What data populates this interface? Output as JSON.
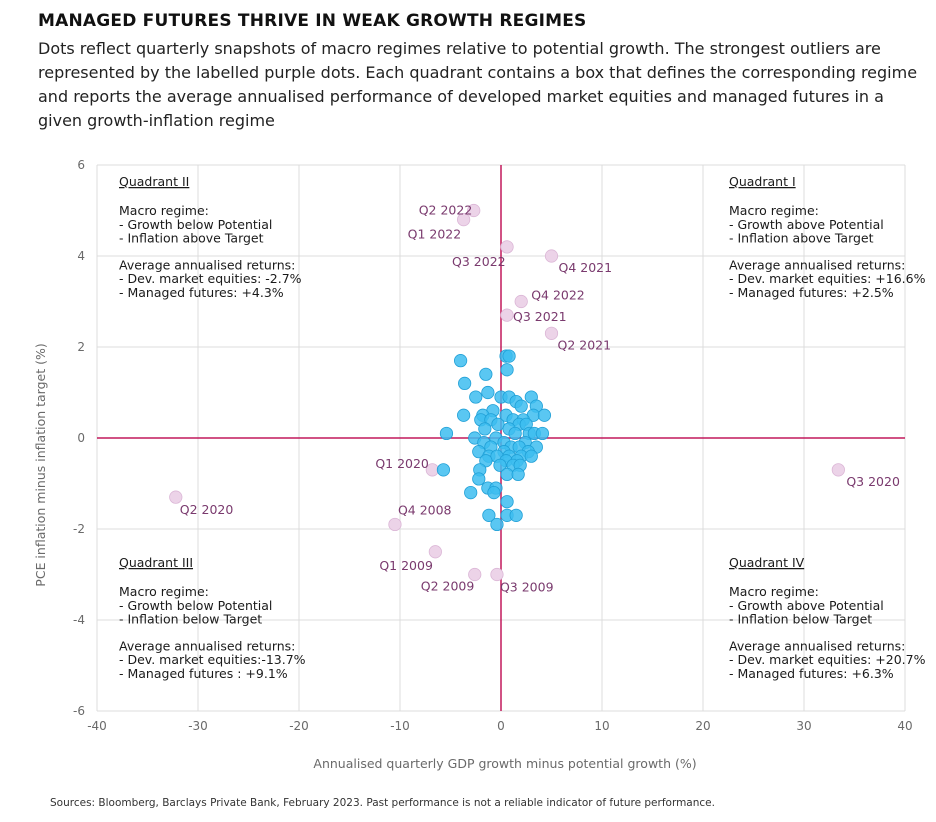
{
  "header": {
    "title": "MANAGED FUTURES THRIVE IN WEAK GROWTH REGIMES",
    "subtitle": "Dots reflect quarterly snapshots of macro regimes relative to potential growth. The strongest outliers are represented by the labelled purple dots. Each quadrant contains a box that defines the corresponding regime and reports the average annualised performance of developed market equities and managed futures in a given growth-inflation regime"
  },
  "footer": {
    "source": "Sources: Bloomberg, Barclays Private Bank, February 2023. Past performance is not a reliable indicator of future performance."
  },
  "colors": {
    "regular_dot": "#3dbdf0",
    "regular_dot_stroke": "#1f9fd6",
    "outlier_dot": "#ecd3e8",
    "outlier_label": "#7a3a6e",
    "zero_lines": "#c2185b",
    "grid": "#dcdcdc"
  },
  "chart_data": {
    "type": "scatter",
    "xlabel": "Annualised quarterly GDP growth minus potential growth (%)",
    "ylabel": "PCE inflation minus inflation target (%)",
    "xlim": [
      -40,
      40
    ],
    "ylim": [
      -6,
      6
    ],
    "xticks": [
      -40,
      -30,
      -20,
      -10,
      0,
      10,
      20,
      30,
      40
    ],
    "yticks": [
      -6,
      -4,
      -2,
      0,
      2,
      4,
      6
    ],
    "grid": true,
    "zero_lines": true,
    "quadrants": [
      {
        "id": "II",
        "heading": "Quadrant II",
        "lines": [
          "Macro regime:",
          "- Growth below Potential",
          "- Inflation above Target",
          "",
          "Average annualised returns:",
          "- Dev. market equities: -2.7%",
          "- Managed futures: +4.3%"
        ]
      },
      {
        "id": "I",
        "heading": "Quadrant I",
        "lines": [
          "Macro regime:",
          "- Growth above Potential",
          "- Inflation above Target",
          "",
          "Average annualised returns:",
          "- Dev. market equities: +16.6%",
          "- Managed futures: +2.5%"
        ]
      },
      {
        "id": "III",
        "heading": "Quadrant III",
        "lines": [
          "Macro regime:",
          "- Growth below Potential",
          "- Inflation below Target",
          "",
          "Average annualised returns:",
          "- Dev. market equities:-13.7%",
          "- Managed futures : +9.1%"
        ]
      },
      {
        "id": "IV",
        "heading": "Quadrant IV",
        "lines": [
          "Macro regime:",
          "- Growth above Potential",
          "- Inflation below Target",
          "",
          "Average annualised returns:",
          "- Dev. market equities: +20.7%",
          "- Managed futures: +6.3%"
        ]
      }
    ],
    "outliers": [
      {
        "label": "Q2 2022",
        "x": -2.7,
        "y": 5.0
      },
      {
        "label": "Q1 2022",
        "x": -3.7,
        "y": 4.8
      },
      {
        "label": "Q3 2022",
        "x": 0.6,
        "y": 4.2
      },
      {
        "label": "Q4 2021",
        "x": 5.0,
        "y": 4.0
      },
      {
        "label": "Q4 2022",
        "x": 2.0,
        "y": 3.0
      },
      {
        "label": "Q3 2021",
        "x": 0.6,
        "y": 2.7
      },
      {
        "label": "Q2 2021",
        "x": 5.0,
        "y": 2.3
      },
      {
        "label": "Q1 2020",
        "x": -6.8,
        "y": -0.7
      },
      {
        "label": "Q3 2020",
        "x": 33.4,
        "y": -0.7
      },
      {
        "label": "Q2 2020",
        "x": -32.2,
        "y": -1.3
      },
      {
        "label": "Q4 2008",
        "x": -10.5,
        "y": -1.9
      },
      {
        "label": "Q1 2009",
        "x": -6.5,
        "y": -2.5
      },
      {
        "label": "Q2 2009",
        "x": -2.6,
        "y": -3.0
      },
      {
        "label": "Q3 2009",
        "x": -0.4,
        "y": -3.0
      }
    ],
    "points": [
      {
        "x": 0.5,
        "y": 1.8
      },
      {
        "x": 0.8,
        "y": 1.8
      },
      {
        "x": -4.0,
        "y": 1.7
      },
      {
        "x": 0.6,
        "y": 1.5
      },
      {
        "x": -1.5,
        "y": 1.4
      },
      {
        "x": -3.6,
        "y": 1.2
      },
      {
        "x": -1.3,
        "y": 1.0
      },
      {
        "x": -2.5,
        "y": 0.9
      },
      {
        "x": 0.0,
        "y": 0.9
      },
      {
        "x": 0.8,
        "y": 0.9
      },
      {
        "x": 3.0,
        "y": 0.9
      },
      {
        "x": 1.5,
        "y": 0.8
      },
      {
        "x": 2.0,
        "y": 0.7
      },
      {
        "x": 3.5,
        "y": 0.7
      },
      {
        "x": -0.8,
        "y": 0.6
      },
      {
        "x": -1.8,
        "y": 0.5
      },
      {
        "x": -3.7,
        "y": 0.5
      },
      {
        "x": 0.5,
        "y": 0.5
      },
      {
        "x": 3.2,
        "y": 0.5
      },
      {
        "x": 4.3,
        "y": 0.5
      },
      {
        "x": -2.0,
        "y": 0.4
      },
      {
        "x": -1.0,
        "y": 0.4
      },
      {
        "x": 1.2,
        "y": 0.4
      },
      {
        "x": 2.2,
        "y": 0.4
      },
      {
        "x": -0.3,
        "y": 0.3
      },
      {
        "x": 1.8,
        "y": 0.3
      },
      {
        "x": 2.5,
        "y": 0.3
      },
      {
        "x": -1.6,
        "y": 0.2
      },
      {
        "x": 0.8,
        "y": 0.2
      },
      {
        "x": -5.4,
        "y": 0.1
      },
      {
        "x": 1.4,
        "y": 0.1
      },
      {
        "x": 2.8,
        "y": 0.1
      },
      {
        "x": 3.3,
        "y": 0.1
      },
      {
        "x": 4.1,
        "y": 0.1
      },
      {
        "x": -2.6,
        "y": 0.0
      },
      {
        "x": -0.5,
        "y": 0.0
      },
      {
        "x": -1.7,
        "y": -0.1
      },
      {
        "x": 0.3,
        "y": -0.1
      },
      {
        "x": 2.4,
        "y": -0.1
      },
      {
        "x": -1.0,
        "y": -0.2
      },
      {
        "x": 1.0,
        "y": -0.2
      },
      {
        "x": 1.8,
        "y": -0.2
      },
      {
        "x": 3.5,
        "y": -0.2
      },
      {
        "x": -2.2,
        "y": -0.3
      },
      {
        "x": 0.3,
        "y": -0.3
      },
      {
        "x": 2.7,
        "y": -0.3
      },
      {
        "x": -1.2,
        "y": -0.4
      },
      {
        "x": -0.4,
        "y": -0.4
      },
      {
        "x": 0.8,
        "y": -0.4
      },
      {
        "x": 2.0,
        "y": -0.4
      },
      {
        "x": 3.0,
        "y": -0.4
      },
      {
        "x": -1.5,
        "y": -0.5
      },
      {
        "x": 0.5,
        "y": -0.5
      },
      {
        "x": 1.6,
        "y": -0.5
      },
      {
        "x": -0.1,
        "y": -0.6
      },
      {
        "x": 1.2,
        "y": -0.6
      },
      {
        "x": 1.9,
        "y": -0.6
      },
      {
        "x": -5.7,
        "y": -0.7
      },
      {
        "x": -2.1,
        "y": -0.7
      },
      {
        "x": 0.6,
        "y": -0.8
      },
      {
        "x": 1.7,
        "y": -0.8
      },
      {
        "x": -2.2,
        "y": -0.9
      },
      {
        "x": -1.3,
        "y": -1.1
      },
      {
        "x": -0.5,
        "y": -1.1
      },
      {
        "x": -3.0,
        "y": -1.2
      },
      {
        "x": -0.7,
        "y": -1.2
      },
      {
        "x": 0.6,
        "y": -1.4
      },
      {
        "x": -1.2,
        "y": -1.7
      },
      {
        "x": 0.6,
        "y": -1.7
      },
      {
        "x": 1.5,
        "y": -1.7
      },
      {
        "x": -0.4,
        "y": -1.9
      }
    ]
  }
}
